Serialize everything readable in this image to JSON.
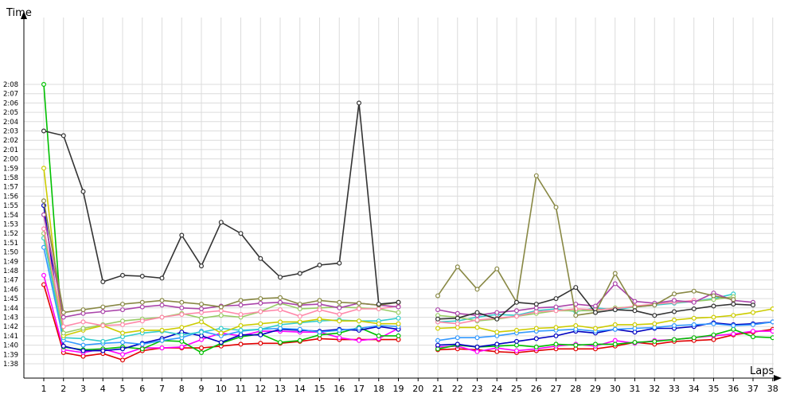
{
  "chart_data": {
    "type": "line",
    "xlabel": "Laps",
    "ylabel": "Time",
    "grid": true,
    "legend": "none",
    "x": [
      1,
      2,
      3,
      4,
      5,
      6,
      7,
      8,
      9,
      10,
      11,
      12,
      13,
      14,
      15,
      16,
      17,
      18,
      19,
      20,
      21,
      22,
      23,
      24,
      25,
      26,
      27,
      28,
      29,
      30,
      31,
      32,
      33,
      34,
      35,
      36,
      37,
      38
    ],
    "y_ticks": [
      "1:38",
      "1:39",
      "1:40",
      "1:41",
      "1:42",
      "1:43",
      "1:44",
      "1:45",
      "1:46",
      "1:47",
      "1:48",
      "1:49",
      "1:50",
      "1:51",
      "1:52",
      "1:53",
      "1:54",
      "1:55",
      "1:56",
      "1:57",
      "1:58",
      "1:59",
      "2:00",
      "2:01",
      "2:02",
      "2:03",
      "2:04",
      "2:05",
      "2:06",
      "2:07",
      "2:08"
    ],
    "ylim_seconds": [
      97,
      129.5
    ],
    "series": [
      {
        "color": "#e00000",
        "values": [
          106.5,
          99.2,
          98.8,
          99.1,
          98.4,
          99.4,
          99.7,
          99.7,
          99.7,
          99.9,
          100.1,
          100.2,
          100.2,
          100.4,
          100.7,
          100.6,
          100.6,
          100.6,
          100.6,
          null,
          99.5,
          99.6,
          99.5,
          99.3,
          99.2,
          99.4,
          99.6,
          99.6,
          99.6,
          99.9,
          100.3,
          100.1,
          100.4,
          100.5,
          100.6,
          101.1,
          101.4,
          101.7
        ]
      },
      {
        "color": "#ff00ff",
        "values": [
          107.5,
          99.5,
          99.2,
          99.6,
          99.0,
          99.7,
          99.7,
          99.8,
          100.6,
          101.3,
          101.0,
          101.5,
          101.5,
          101.4,
          101.4,
          100.8,
          100.5,
          100.7,
          101.8,
          null,
          99.8,
          99.9,
          99.3,
          99.7,
          99.4,
          99.6,
          99.9,
          100.1,
          99.9,
          100.5,
          100.2,
          100.5,
          100.6,
          100.8,
          101.0,
          101.2,
          101.5,
          101.5
        ]
      },
      {
        "color": "#00c000",
        "values": [
          128.0,
          99.8,
          99.5,
          99.6,
          99.8,
          99.6,
          100.5,
          100.4,
          99.2,
          100.2,
          100.9,
          101.2,
          100.3,
          100.5,
          101.1,
          101.3,
          101.9,
          101.0,
          101.0,
          null,
          99.6,
          100.0,
          99.8,
          99.9,
          100.0,
          99.8,
          100.1,
          100.0,
          100.1,
          100.1,
          100.3,
          100.4,
          100.6,
          100.8,
          101.1,
          101.7,
          100.9,
          100.8
        ]
      },
      {
        "color": "#0000c0",
        "values": [
          115.0,
          99.9,
          99.4,
          99.4,
          99.6,
          100.2,
          100.7,
          101.4,
          101.0,
          100.3,
          101.1,
          101.1,
          101.7,
          101.6,
          101.5,
          101.7,
          101.6,
          102.0,
          101.7,
          null,
          100.0,
          100.1,
          99.8,
          100.1,
          100.4,
          100.7,
          101.0,
          101.5,
          101.3,
          101.7,
          101.4,
          101.8,
          101.8,
          102.0,
          102.4,
          102.2,
          102.3,
          102.5
        ]
      },
      {
        "color": "#3399ff",
        "values": [
          110.5,
          100.5,
          100.0,
          100.2,
          100.3,
          100.1,
          100.5,
          100.8,
          101.5,
          101.0,
          101.5,
          101.7,
          101.8,
          101.7,
          101.4,
          101.6,
          101.8,
          102.1,
          102.0,
          null,
          100.5,
          100.8,
          100.8,
          101.0,
          101.3,
          101.5,
          101.6,
          101.7,
          101.5,
          101.7,
          101.8,
          101.9,
          102.1,
          102.2,
          102.3,
          102.1,
          102.2,
          102.5
        ]
      },
      {
        "color": "#33cccc",
        "values": [
          111.5,
          100.8,
          100.7,
          100.4,
          100.9,
          101.3,
          101.5,
          101.1,
          101.4,
          101.8,
          101.6,
          101.7,
          102.2,
          102.4,
          102.6,
          102.7,
          102.6,
          102.6,
          102.9,
          null,
          102.5,
          102.6,
          103.0,
          103.3,
          103.2,
          103.7,
          103.9,
          103.6,
          104.0,
          103.8,
          104.1,
          104.3,
          104.5,
          104.7,
          105.0,
          105.5,
          null,
          null
        ]
      },
      {
        "color": "#cccc00",
        "values": [
          119.0,
          101.0,
          101.6,
          102.1,
          101.3,
          101.6,
          101.6,
          101.9,
          102.5,
          101.3,
          102.1,
          102.3,
          102.5,
          102.5,
          102.8,
          102.6,
          102.6,
          102.3,
          102.3,
          null,
          101.8,
          101.9,
          101.9,
          101.4,
          101.6,
          101.8,
          101.9,
          102.1,
          101.8,
          102.2,
          102.2,
          102.3,
          102.7,
          102.9,
          103.0,
          103.2,
          103.5,
          103.9
        ]
      },
      {
        "color": "#99cc66",
        "values": [
          112.0,
          101.3,
          101.8,
          102.2,
          102.6,
          102.8,
          103.0,
          103.4,
          102.9,
          103.2,
          103.0,
          103.6,
          104.5,
          103.9,
          104.0,
          104.1,
          104.0,
          103.9,
          103.5,
          null,
          103.2,
          103.0,
          102.6,
          102.8,
          103.1,
          103.4,
          103.7,
          103.7,
          103.7,
          104.0,
          104.1,
          104.4,
          104.6,
          104.7,
          104.9,
          105.2,
          null,
          null
        ]
      },
      {
        "color": "#ff88aa",
        "values": [
          112.5,
          102.0,
          102.5,
          102.1,
          102.2,
          102.6,
          103.0,
          103.3,
          103.5,
          103.7,
          103.3,
          103.6,
          103.8,
          103.1,
          103.8,
          103.3,
          103.9,
          103.9,
          104.2,
          null,
          102.5,
          102.3,
          102.7,
          102.9,
          103.1,
          103.6,
          103.7,
          103.9,
          103.8,
          103.9,
          104.2,
          104.4,
          104.6,
          104.8,
          null,
          null,
          null,
          null
        ]
      },
      {
        "color": "#aa44aa",
        "values": [
          114.0,
          103.0,
          103.4,
          103.6,
          103.8,
          104.1,
          104.3,
          104.0,
          103.9,
          104.2,
          104.3,
          104.5,
          104.6,
          104.3,
          104.4,
          104.0,
          104.5,
          104.3,
          104.1,
          null,
          103.8,
          103.4,
          103.2,
          103.5,
          103.7,
          104.0,
          104.1,
          104.4,
          104.2,
          106.6,
          104.7,
          104.5,
          104.8,
          104.6,
          105.6,
          104.8,
          104.6,
          null
        ]
      },
      {
        "color": "#888844",
        "values": [
          115.5,
          103.5,
          103.8,
          104.1,
          104.4,
          104.6,
          104.8,
          104.6,
          104.4,
          104.1,
          104.8,
          105.0,
          105.1,
          104.4,
          104.8,
          104.6,
          104.5,
          104.3,
          104.6,
          null,
          105.3,
          108.4,
          106.0,
          108.2,
          104.6,
          118.2,
          114.8,
          103.2,
          103.5,
          107.7,
          104.1,
          104.3,
          105.5,
          105.8,
          105.3,
          104.9,
          null,
          null
        ]
      },
      {
        "color": "#333333",
        "values": [
          123.0,
          122.5,
          116.5,
          106.8,
          107.5,
          107.4,
          107.2,
          111.8,
          108.5,
          113.2,
          112.0,
          109.3,
          107.3,
          107.7,
          108.6,
          108.8,
          126.0,
          104.4,
          104.6,
          null,
          102.8,
          102.9,
          103.5,
          102.8,
          104.6,
          104.4,
          105.0,
          106.2,
          103.5,
          103.8,
          103.7,
          103.2,
          103.6,
          103.9,
          104.2,
          104.4,
          104.3,
          null
        ]
      }
    ]
  }
}
